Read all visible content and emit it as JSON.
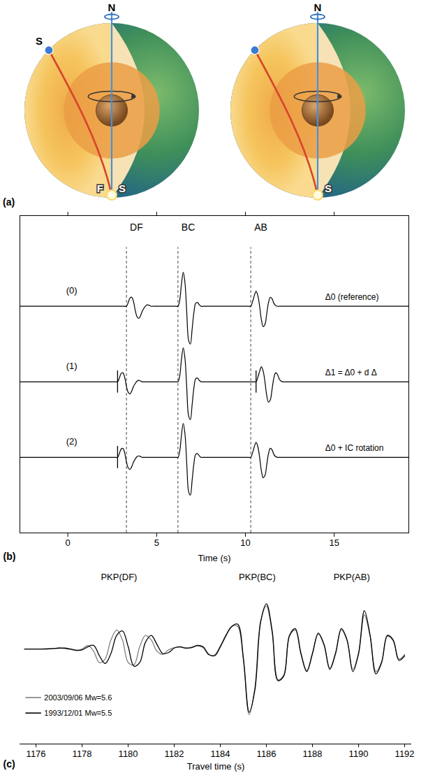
{
  "diagram": {
    "panel_label": "(a)",
    "globes": [
      {
        "source": "S",
        "north": "N",
        "station": "F",
        "south": "S"
      },
      {
        "north": "N",
        "south": "S"
      }
    ]
  },
  "chart_data": [
    {
      "type": "line",
      "panel_label": "(b)",
      "x_label": "Time (s)",
      "xlim": [
        -2.7,
        19.2
      ],
      "xticks": [
        0,
        5,
        10,
        15
      ],
      "ylim": [
        -1,
        3.2
      ],
      "tick_labels": "x",
      "markers": [
        {
          "label": "DF",
          "x": 3.3
        },
        {
          "label": "BC",
          "x": 6.2
        },
        {
          "label": "AB",
          "x": 10.3
        }
      ],
      "x": [
        -2.7,
        2.7,
        2.8,
        2.9,
        3.0,
        3.1,
        3.2,
        3.3,
        3.4,
        3.5,
        3.6,
        3.7,
        3.8,
        3.9,
        4.0,
        4.1,
        4.2,
        4.3,
        4.4,
        4.5,
        4.6,
        4.7,
        4.8,
        6.1,
        6.2,
        6.3,
        6.4,
        6.5,
        6.6,
        6.7,
        6.8,
        6.9,
        7.0,
        7.1,
        7.2,
        7.3,
        7.4,
        7.5,
        7.6,
        7.7,
        10.2,
        10.3,
        10.4,
        10.5,
        10.6,
        10.7,
        10.8,
        10.9,
        11.0,
        11.1,
        11.2,
        11.3,
        11.4,
        11.5,
        11.6,
        11.7,
        11.8,
        11.9,
        12.0,
        12.1,
        12.2,
        12.3,
        19.2
      ],
      "series": [
        {
          "name": "(0)",
          "label": "Δ0 (reference)",
          "color": "#000000",
          "values": [
            2,
            2,
            2,
            2,
            2,
            2,
            2,
            2,
            2.05,
            2.11,
            2.12,
            2.06,
            1.94,
            1.86,
            1.84,
            1.88,
            1.94,
            1.98,
            2.01,
            2.02,
            2.01,
            2,
            2,
            2,
            2,
            2.08,
            2.3,
            2.45,
            2.3,
            1.9,
            1.55,
            1.5,
            1.7,
            1.92,
            2.04,
            2.05,
            2.02,
            2,
            2,
            2,
            2,
            2,
            2.06,
            2.14,
            2.2,
            2.14,
            2,
            1.82,
            1.73,
            1.76,
            1.9,
            2.05,
            2.12,
            2.1,
            2.04,
            2.01,
            2,
            2,
            2,
            2,
            2,
            2,
            2
          ]
        },
        {
          "name": "(1)",
          "label": "Δ1 = Δ0 + d Δ",
          "color": "#000000",
          "picks": [
            2.8,
            10.6
          ],
          "values": [
            1,
            1,
            1,
            1.05,
            1.11,
            1.12,
            1.06,
            0.94,
            0.86,
            0.84,
            0.88,
            0.94,
            0.98,
            1.01,
            1.02,
            1.01,
            1,
            1,
            1,
            1,
            1,
            1,
            1,
            1,
            1,
            1.08,
            1.3,
            1.45,
            1.3,
            0.9,
            0.55,
            0.5,
            0.7,
            0.92,
            1.04,
            1.05,
            1.02,
            1,
            1,
            1,
            1,
            1,
            1,
            1,
            1,
            1.06,
            1.14,
            1.2,
            1.14,
            1,
            0.82,
            0.73,
            0.76,
            0.9,
            1.05,
            1.12,
            1.1,
            1.04,
            1.01,
            1,
            1,
            1,
            1
          ]
        },
        {
          "name": "(2)",
          "label": "Δ0 + IC rotation",
          "color": "#000000",
          "picks": [
            2.8
          ],
          "values": [
            0,
            0,
            0,
            0.05,
            0.11,
            0.12,
            0.06,
            -0.06,
            -0.14,
            -0.16,
            -0.12,
            -0.06,
            -0.02,
            0.01,
            0.02,
            0.01,
            0,
            0,
            0,
            0,
            0,
            0,
            0,
            0,
            0,
            0.08,
            0.3,
            0.45,
            0.3,
            -0.1,
            -0.45,
            -0.5,
            -0.3,
            -0.08,
            0.04,
            0.05,
            0.02,
            0,
            0,
            0,
            0,
            0,
            0.06,
            0.14,
            0.2,
            0.14,
            0,
            -0.18,
            -0.27,
            -0.24,
            -0.1,
            0.05,
            0.12,
            0.1,
            0.04,
            0.01,
            0,
            0,
            0,
            0,
            0,
            0,
            0
          ]
        }
      ]
    },
    {
      "type": "line",
      "panel_label": "(c)",
      "x_label": "Travel time (s)",
      "xlim": [
        1175.3,
        1192.3
      ],
      "xticks": [
        1176,
        1178,
        1180,
        1182,
        1184,
        1186,
        1188,
        1190,
        1192
      ],
      "ylim": [
        -2.1,
        1.7
      ],
      "tick_labels": "x",
      "legend": "lower left",
      "annotations": [
        {
          "text": "PKP(DF)",
          "x": 1179.6
        },
        {
          "text": "PKP(BC)",
          "x": 1185.6
        },
        {
          "text": "PKP(AB)",
          "x": 1189.7
        }
      ],
      "x": [
        1175.5,
        1175.75,
        1176.0,
        1176.25,
        1176.5,
        1176.75,
        1177.0,
        1177.25,
        1177.5,
        1177.75,
        1178.0,
        1178.25,
        1178.5,
        1178.75,
        1179.0,
        1179.25,
        1179.5,
        1179.75,
        1180.0,
        1180.25,
        1180.5,
        1180.75,
        1181.0,
        1181.25,
        1181.5,
        1181.75,
        1182.0,
        1182.25,
        1182.5,
        1182.75,
        1183.0,
        1183.25,
        1183.5,
        1183.75,
        1184.0,
        1184.25,
        1184.5,
        1184.75,
        1185.0,
        1185.25,
        1185.5,
        1185.75,
        1186.0,
        1186.25,
        1186.5,
        1186.75,
        1187.0,
        1187.25,
        1187.5,
        1187.75,
        1188.0,
        1188.25,
        1188.5,
        1188.75,
        1189.0,
        1189.25,
        1189.5,
        1189.75,
        1190.0,
        1190.25,
        1190.5,
        1190.75,
        1191.0,
        1191.25,
        1191.5,
        1191.75,
        1192.0
      ],
      "series": [
        {
          "name": "2003/09/06 Mw=5.6",
          "color": "#808080",
          "values": [
            0,
            0,
            0,
            0,
            0.01,
            0.01,
            0.02,
            0.01,
            -0.01,
            -0.03,
            0,
            0.08,
            -0.05,
            -0.3,
            -0.22,
            0.2,
            0.42,
            0.2,
            -0.3,
            -0.35,
            0.05,
            0.3,
            0.2,
            -0.05,
            -0.12,
            -0.02,
            0.03,
            0.04,
            0.02,
            0.04,
            0.07,
            0.03,
            -0.13,
            -0.13,
            0.07,
            0.32,
            0.5,
            0.5,
            -0.25,
            -1.45,
            -0.85,
            0.62,
            0.95,
            0.35,
            -0.68,
            -0.58,
            0.28,
            0.42,
            -0.12,
            -0.48,
            -0.08,
            0.33,
            0.08,
            -0.42,
            -0.08,
            0.42,
            0.18,
            -0.45,
            -0.08,
            0.75,
            0.28,
            -0.5,
            -0.28,
            0.28,
            0.18,
            -0.22,
            -0.12
          ]
        },
        {
          "name": "1993/12/01 Mw=5.5",
          "color": "#000000",
          "values": [
            0,
            0,
            0,
            0,
            0,
            0.01,
            0.02,
            0.02,
            0,
            -0.03,
            -0.02,
            0.05,
            0.08,
            -0.15,
            -0.32,
            -0.1,
            0.3,
            0.4,
            0.05,
            -0.38,
            -0.3,
            0.15,
            0.3,
            0.1,
            -0.1,
            -0.08,
            0.02,
            0.05,
            0.02,
            0.03,
            0.08,
            0.05,
            -0.12,
            -0.15,
            0.05,
            0.3,
            0.5,
            0.55,
            -0.2,
            -1.4,
            -0.9,
            0.6,
            1.0,
            0.4,
            -0.7,
            -0.6,
            0.3,
            0.45,
            -0.1,
            -0.5,
            -0.1,
            0.35,
            0.1,
            -0.45,
            -0.1,
            0.45,
            0.2,
            -0.5,
            -0.1,
            0.85,
            0.3,
            -0.55,
            -0.3,
            0.3,
            0.2,
            -0.25,
            -0.15
          ]
        }
      ]
    }
  ]
}
